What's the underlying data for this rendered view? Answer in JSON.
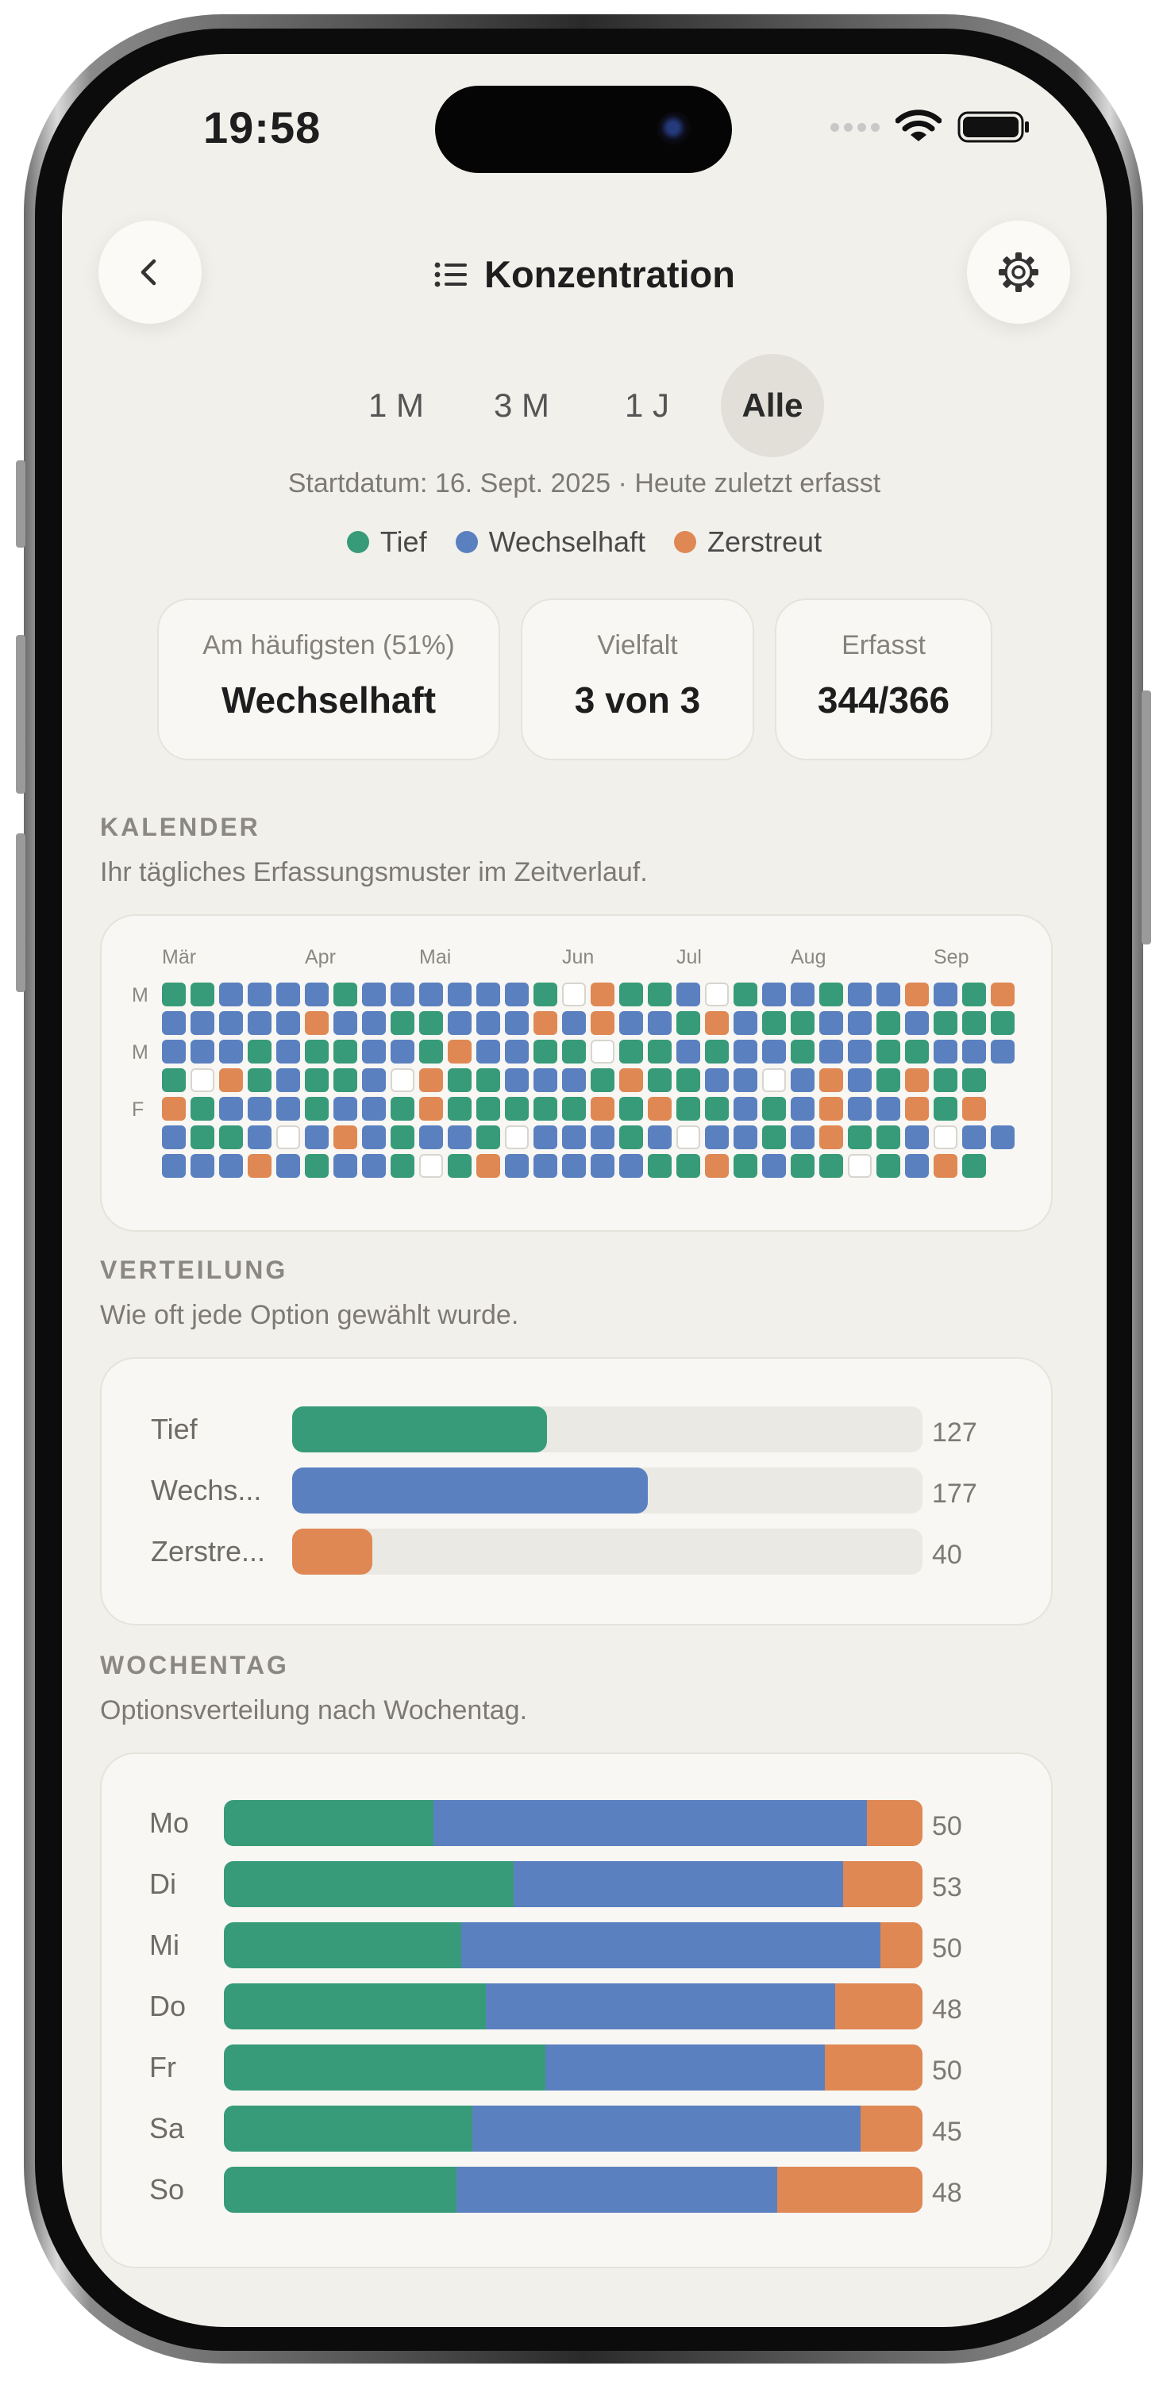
{
  "colors": {
    "tief": "#379b79",
    "wechselhaft": "#5b80c0",
    "zerstreut": "#df8854",
    "empty": "#ffffff"
  },
  "status_bar": {
    "time": "19:58"
  },
  "header": {
    "title": "Konzentration",
    "back_icon": "chevron-left-icon",
    "list_icon": "list-icon",
    "settings_icon": "gear-icon"
  },
  "ranges": [
    {
      "label": "1 M",
      "active": false
    },
    {
      "label": "3 M",
      "active": false
    },
    {
      "label": "1 J",
      "active": false
    },
    {
      "label": "Alle",
      "active": true
    }
  ],
  "start_line": "Startdatum: 16. Sept. 2025  ·  Heute zuletzt erfasst",
  "legend": [
    {
      "label": "Tief",
      "color": "#379b79"
    },
    {
      "label": "Wechselhaft",
      "color": "#5b80c0"
    },
    {
      "label": "Zerstreut",
      "color": "#df8854"
    }
  ],
  "stats": {
    "most_common": {
      "label": "Am häufigsten (51%)",
      "value": "Wechselhaft"
    },
    "variety": {
      "label": "Vielfalt",
      "value": "3 von 3"
    },
    "tracked": {
      "label": "Erfasst",
      "value": "344/366"
    }
  },
  "calendar": {
    "title": "KALENDER",
    "subtitle": "Ihr tägliches Erfassungsmuster im Zeitverlauf.",
    "months": [
      {
        "label": "Mär",
        "week": 0
      },
      {
        "label": "Apr",
        "week": 5
      },
      {
        "label": "Mai",
        "week": 9
      },
      {
        "label": "Jun",
        "week": 14
      },
      {
        "label": "Jul",
        "week": 18
      },
      {
        "label": "Aug",
        "week": 22
      },
      {
        "label": "Sep",
        "week": 27
      }
    ],
    "day_labels": [
      {
        "label": "M",
        "row": 0
      },
      {
        "label": "M",
        "row": 2
      },
      {
        "label": "F",
        "row": 4
      }
    ],
    "rows": [
      "TTBBBBTBBBBBBTXZTTBXTBBTBBZBTZ",
      "BBBBBZBBTTBBBZBZBBTZBTTBBTBTTT",
      "BBBTBTTBBTZBBTTXTTBTBBTBBTTBBB",
      "TXZTBTTBXZTTBBBTZTTBBXBZBTZTT",
      "ZTBBBTBBTZTTTTTZTZTTBTBZBBZTZ",
      "BTTBXBZBTBBTXBBBTBXBBTBZTTBXBB",
      "BBBZBTBBTXTZBBBBBTTZTBTTXTBZT"
    ]
  },
  "distribution": {
    "title": "VERTEILUNG",
    "subtitle": "Wie oft jede Option gewählt wurde.",
    "max": 314,
    "items": [
      {
        "label": "Tief",
        "value": 127,
        "color": "#379b79"
      },
      {
        "label": "Wechs...",
        "value": 177,
        "color": "#5b80c0"
      },
      {
        "label": "Zerstre...",
        "value": 40,
        "color": "#df8854"
      }
    ]
  },
  "weekday": {
    "title": "WOCHENTAG",
    "subtitle": "Optionsverteilung nach Wochentag.",
    "days": [
      {
        "label": "Mo",
        "tief": 15,
        "wechselhaft": 31,
        "zerstreut": 4,
        "total": 50
      },
      {
        "label": "Di",
        "tief": 22,
        "wechselhaft": 25,
        "zerstreut": 6,
        "total": 53
      },
      {
        "label": "Mi",
        "tief": 17,
        "wechselhaft": 30,
        "zerstreut": 3,
        "total": 50
      },
      {
        "label": "Do",
        "tief": 18,
        "wechselhaft": 24,
        "zerstreut": 6,
        "total": 48
      },
      {
        "label": "Fr",
        "tief": 23,
        "wechselhaft": 20,
        "zerstreut": 7,
        "total": 50
      },
      {
        "label": "Sa",
        "tief": 16,
        "wechselhaft": 25,
        "zerstreut": 4,
        "total": 45
      },
      {
        "label": "So",
        "tief": 16,
        "wechselhaft": 22,
        "zerstreut": 10,
        "total": 48
      }
    ]
  }
}
